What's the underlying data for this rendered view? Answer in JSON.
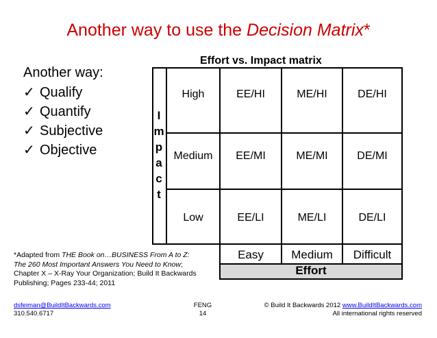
{
  "title": {
    "prefix": "Another way to use the ",
    "emphasis": "Decision Matrix",
    "suffix": "*"
  },
  "matrix_heading": "Effort vs. Impact matrix",
  "lead": "Another way:",
  "bullets": [
    "Qualify",
    "Quantify",
    "Subjective",
    "Objective"
  ],
  "check_glyph": "✓",
  "impact_letters": [
    "I",
    "m",
    "p",
    "a",
    "c",
    "t"
  ],
  "rows": [
    {
      "label": "High",
      "cells": [
        "EE/HI",
        "ME/HI",
        "DE/HI"
      ]
    },
    {
      "label": "Medium",
      "cells": [
        "EE/MI",
        "ME/MI",
        "DE/MI"
      ]
    },
    {
      "label": "Low",
      "cells": [
        "EE/LI",
        "ME/LI",
        "DE/LI"
      ]
    }
  ],
  "effort_levels": [
    "Easy",
    "Medium",
    "Difficult"
  ],
  "effort_label": "Effort",
  "footnote": {
    "p1": "*Adapted from ",
    "book": "THE Book on…BUSINESS From A to Z: The 260 Most Important Answers You Need to Know",
    "p2": "; Chapter X – X-Ray Your Organization; Build It Backwards Publishing; Pages 233-44; 2011"
  },
  "footer": {
    "email": "dsfeiman@BuildItBackwards.com",
    "phone": "310.540.6717",
    "org": "FENG",
    "page": "14",
    "copyright": "© Build It Backwards 2012 ",
    "site": "www.BuildItBackwards.com",
    "rights": "All international rights reserved"
  },
  "colors": {
    "title": "#cc0000",
    "effort_band": "#d9d9d9",
    "link": "#0000ee"
  }
}
